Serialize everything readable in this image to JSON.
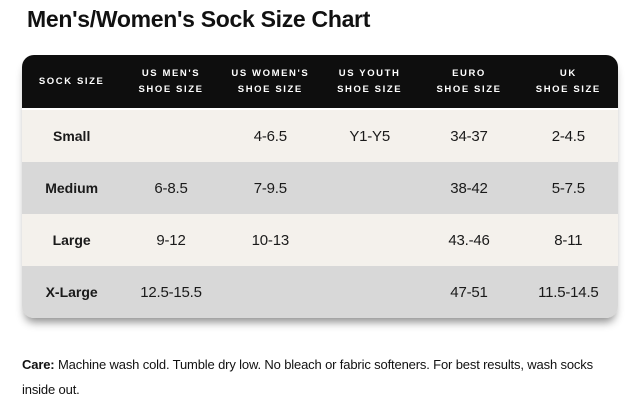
{
  "page": {
    "title": "Men's/Women's Sock Size Chart"
  },
  "colors": {
    "header_bg": "#0e0e0e",
    "header_text": "#ffffff",
    "row_gray": "#d8d8d8",
    "row_cream": "#f4f1ec",
    "text": "#111111"
  },
  "table": {
    "headers": [
      [
        "SOCK SIZE"
      ],
      [
        "US MEN'S",
        "SHOE SIZE"
      ],
      [
        "US WOMEN'S",
        "SHOE SIZE"
      ],
      [
        "US YOUTH",
        "SHOE SIZE"
      ],
      [
        "EURO",
        "SHOE SIZE"
      ],
      [
        "UK",
        "SHOE SIZE"
      ]
    ]
  },
  "chart_data": {
    "type": "table",
    "title": "Men's/Women's Sock Size Chart",
    "columns": [
      "Sock Size",
      "US Men's Shoe Size",
      "US Women's Shoe Size",
      "US Youth Shoe Size",
      "Euro Shoe Size",
      "UK Shoe Size"
    ],
    "rows": [
      [
        "Small",
        "",
        "4-6.5",
        "Y1-Y5",
        "34-37",
        "2-4.5"
      ],
      [
        "Medium",
        "6-8.5",
        "7-9.5",
        "",
        "38-42",
        "5-7.5"
      ],
      [
        "Large",
        "9-12",
        "10-13",
        "",
        "43.-46",
        "8-11"
      ],
      [
        "X-Large",
        "12.5-15.5",
        "",
        "",
        "47-51",
        "11.5-14.5"
      ]
    ]
  },
  "care": {
    "label": "Care:",
    "text": " Machine wash cold. Tumble dry low. No bleach or fabric softeners. For best results, wash socks inside out."
  }
}
